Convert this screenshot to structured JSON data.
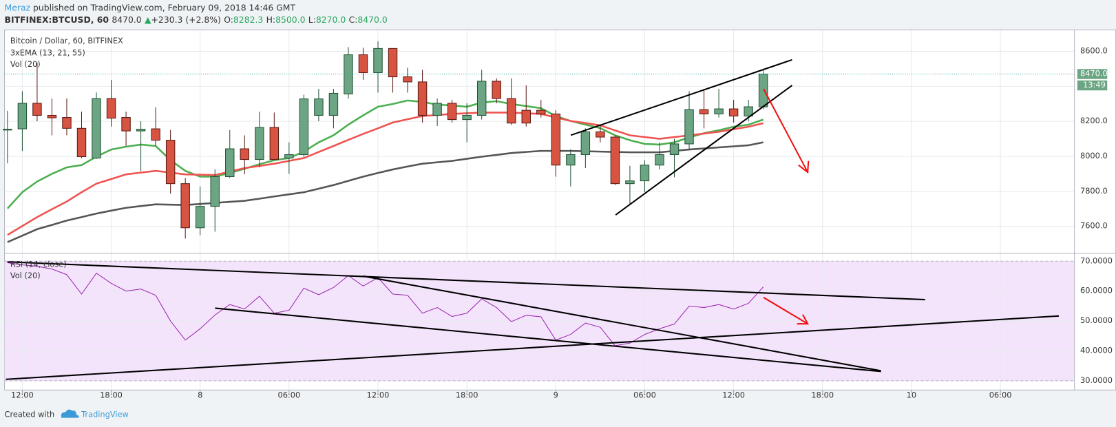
{
  "header": {
    "author": "Meraz",
    "published": " published on TradingView.com, February 09, 2018 14:46 GMT",
    "symbol": "BITFINEX:BTCUSD, 60",
    "last": "8470.0",
    "arrow": "▲",
    "change": "+230.3 (+2.8%)",
    "o_label": "O:",
    "o": "8282.3",
    "h_label": "H:",
    "h": "8500.0",
    "l_label": "L:",
    "l": "8270.0",
    "c_label": "C:",
    "c": "8470.0"
  },
  "footer": {
    "created": "Created with",
    "brand": "TradingView"
  },
  "chart_data": [
    {
      "type": "candlestick",
      "title": "Bitcoin / Dollar, 60, BITFINEX",
      "indicator": "3xEMA (13, 21, 55)",
      "volume_label": "Vol (20)",
      "x": [
        "2018-02-07T11:00",
        "2018-02-07T12:00",
        "2018-02-07T13:00",
        "2018-02-07T14:00",
        "2018-02-07T15:00",
        "2018-02-07T16:00",
        "2018-02-07T17:00",
        "2018-02-07T18:00",
        "2018-02-07T19:00",
        "2018-02-07T20:00",
        "2018-02-07T21:00",
        "2018-02-07T22:00",
        "2018-02-07T23:00",
        "2018-02-08T00:00",
        "2018-02-08T01:00",
        "2018-02-08T02:00",
        "2018-02-08T03:00",
        "2018-02-08T04:00",
        "2018-02-08T05:00",
        "2018-02-08T06:00",
        "2018-02-08T07:00",
        "2018-02-08T08:00",
        "2018-02-08T09:00",
        "2018-02-08T10:00",
        "2018-02-08T11:00",
        "2018-02-08T12:00",
        "2018-02-08T13:00",
        "2018-02-08T14:00",
        "2018-02-08T15:00",
        "2018-02-08T16:00",
        "2018-02-08T17:00",
        "2018-02-08T18:00",
        "2018-02-08T19:00",
        "2018-02-08T20:00",
        "2018-02-08T21:00",
        "2018-02-08T22:00",
        "2018-02-08T23:00",
        "2018-02-09T00:00",
        "2018-02-09T01:00",
        "2018-02-09T02:00",
        "2018-02-09T03:00",
        "2018-02-09T04:00",
        "2018-02-09T05:00",
        "2018-02-09T06:00",
        "2018-02-09T07:00",
        "2018-02-09T08:00",
        "2018-02-09T09:00",
        "2018-02-09T10:00",
        "2018-02-09T11:00",
        "2018-02-09T12:00",
        "2018-02-09T13:00",
        "2018-02-09T14:00"
      ],
      "open": [
        8150,
        8157,
        8303,
        8234,
        8222,
        8160,
        7990,
        8330,
        8222,
        8145,
        8157,
        8092,
        7844,
        7592,
        7714,
        7884,
        8043,
        7982,
        8165,
        7990,
        8010,
        8234,
        8234,
        8356,
        8580,
        8478,
        8616,
        8454,
        8425,
        8234,
        8303,
        8210,
        8234,
        8429,
        8330,
        8263,
        8263,
        8242,
        7950,
        8010,
        8140,
        8110,
        7844,
        7860,
        7950,
        8010,
        8071,
        8267,
        8242,
        8271,
        8230,
        8282.3
      ],
      "high": [
        8260,
        8372,
        8535,
        8330,
        8330,
        8255,
        8365,
        8437,
        8255,
        8200,
        8280,
        8150,
        7876,
        7828,
        7925,
        8150,
        8120,
        8255,
        8250,
        8080,
        8352,
        8385,
        8385,
        8624,
        8620,
        8657,
        8616,
        8506,
        8494,
        8330,
        8323,
        8303,
        8494,
        8445,
        8445,
        8405,
        8323,
        8263,
        8040,
        8160,
        8180,
        8120,
        7946,
        7978,
        8080,
        8100,
        8372,
        8385,
        8385,
        8323,
        8323,
        8500
      ],
      "low": [
        7960,
        8031,
        8200,
        8120,
        8120,
        7990,
        7985,
        8170,
        8060,
        7915,
        8060,
        7787,
        7530,
        7550,
        7570,
        7876,
        7897,
        7937,
        7978,
        7900,
        7998,
        8200,
        8160,
        8330,
        8437,
        8364,
        8364,
        8364,
        8193,
        8173,
        8193,
        8080,
        8210,
        8303,
        8180,
        8170,
        8222,
        7884,
        7828,
        7933,
        8080,
        7836,
        7722,
        7795,
        7925,
        7880,
        8040,
        8160,
        8222,
        8193,
        8200,
        8270
      ],
      "close": [
        8155,
        8303,
        8234,
        8220,
        8160,
        7998,
        8330,
        8218,
        8145,
        8155,
        8092,
        7844,
        7592,
        7714,
        7884,
        8043,
        7982,
        8165,
        7982,
        8010,
        8328,
        8328,
        8360,
        8580,
        8478,
        8616,
        8454,
        8425,
        8234,
        8303,
        8210,
        8234,
        8429,
        8330,
        8190,
        8190,
        8242,
        7950,
        8010,
        8140,
        8110,
        7844,
        7860,
        7950,
        8010,
        8071,
        8267,
        8242,
        8271,
        8230,
        8283,
        8470
      ],
      "up_color": "#6ba583",
      "down_color": "#d75442",
      "series": [
        {
          "color": "#4caf50",
          "values": [
            7702,
            7795,
            7856,
            7900,
            7937,
            7950,
            7998,
            8039,
            8055,
            8067,
            8059,
            7978,
            7917,
            7884,
            7884,
            7905,
            7929,
            7955,
            7978,
            7990,
            8027,
            8080,
            8120,
            8181,
            8234,
            8283,
            8299,
            8319,
            8311,
            8295,
            8291,
            8283,
            8307,
            8315,
            8299,
            8287,
            8275,
            8230,
            8202,
            8181,
            8161,
            8120,
            8092,
            8071,
            8067,
            8080,
            8108,
            8132,
            8149,
            8169,
            8181,
            8210
          ]
        },
        {
          "color": "#ef5350",
          "values": [
            7551,
            7602,
            7653,
            7698,
            7742,
            7795,
            7844,
            7870,
            7897,
            7907,
            7917,
            7907,
            7897,
            7895,
            7893,
            7913,
            7933,
            7945,
            7958,
            7974,
            7990,
            8025,
            8059,
            8094,
            8128,
            8160,
            8193,
            8212,
            8230,
            8236,
            8242,
            8246,
            8250,
            8250,
            8250,
            8246,
            8242,
            8222,
            8202,
            8190,
            8177,
            8148,
            8120,
            8110,
            8100,
            8110,
            8120,
            8130,
            8140,
            8155,
            8169,
            8189
          ]
        },
        {
          "color": "#555555",
          "values": [
            7510,
            7547,
            7584,
            7608,
            7633,
            7653,
            7673,
            7690,
            7706,
            7716,
            7726,
            7724,
            7722,
            7728,
            7734,
            7740,
            7746,
            7758,
            7771,
            7783,
            7795,
            7815,
            7836,
            7860,
            7884,
            7905,
            7925,
            7942,
            7958,
            7966,
            7974,
            7986,
            7998,
            8008,
            8019,
            8025,
            8031,
            8031,
            8031,
            8029,
            8027,
            8025,
            8023,
            8023,
            8023,
            8031,
            8039,
            8045,
            8051,
            8057,
            8063,
            8080
          ]
        }
      ],
      "last_label": "8470.0",
      "countdown": "13:49",
      "xlim": [
        "2018-02-07T10:48",
        "2018-02-10T11:00"
      ],
      "ylim": [
        7450,
        8718
      ],
      "yticks": [
        {
          "value": 7600,
          "label": "7600.0"
        },
        {
          "value": 7800,
          "label": "7800.0"
        },
        {
          "value": 8000,
          "label": "8000.0"
        },
        {
          "value": 8200,
          "label": "8200.0"
        },
        {
          "value": 8400,
          "label": "8400.0"
        },
        {
          "value": 8600,
          "label": "8600.0"
        }
      ],
      "grid": true
    },
    {
      "type": "line",
      "title": "RSI (14, close)",
      "volume_label": "Vol (20)",
      "color": "#9c27b0",
      "x": [
        "2018-02-07T11:00",
        "2018-02-07T12:00",
        "2018-02-07T13:00",
        "2018-02-07T14:00",
        "2018-02-07T15:00",
        "2018-02-07T16:00",
        "2018-02-07T17:00",
        "2018-02-07T18:00",
        "2018-02-07T19:00",
        "2018-02-07T20:00",
        "2018-02-07T21:00",
        "2018-02-07T22:00",
        "2018-02-07T23:00",
        "2018-02-08T00:00",
        "2018-02-08T01:00",
        "2018-02-08T02:00",
        "2018-02-08T03:00",
        "2018-02-08T04:00",
        "2018-02-08T05:00",
        "2018-02-08T06:00",
        "2018-02-08T07:00",
        "2018-02-08T08:00",
        "2018-02-08T09:00",
        "2018-02-08T10:00",
        "2018-02-08T11:00",
        "2018-02-08T12:00",
        "2018-02-08T13:00",
        "2018-02-08T14:00",
        "2018-02-08T15:00",
        "2018-02-08T16:00",
        "2018-02-08T17:00",
        "2018-02-08T18:00",
        "2018-02-08T19:00",
        "2018-02-08T20:00",
        "2018-02-08T21:00",
        "2018-02-08T22:00",
        "2018-02-08T23:00",
        "2018-02-09T00:00",
        "2018-02-09T01:00",
        "2018-02-09T02:00",
        "2018-02-09T03:00",
        "2018-02-09T04:00",
        "2018-02-09T05:00",
        "2018-02-09T06:00",
        "2018-02-09T07:00",
        "2018-02-09T08:00",
        "2018-02-09T09:00",
        "2018-02-09T10:00",
        "2018-02-09T11:00",
        "2018-02-09T12:00",
        "2018-02-09T13:00",
        "2018-02-09T14:00"
      ],
      "values": [
        69.5,
        68.8,
        68.3,
        67.4,
        65.5,
        59,
        66,
        62.6,
        60,
        60.7,
        58.6,
        50,
        43.6,
        47.4,
        52,
        55.5,
        54,
        58.3,
        52.6,
        53.6,
        61,
        58.8,
        61.2,
        65.2,
        61.7,
        64.5,
        59,
        58.6,
        52.6,
        54.5,
        51.5,
        52.6,
        57.4,
        54.5,
        49.8,
        51.9,
        51.4,
        43.6,
        45.5,
        49.3,
        47.9,
        41.7,
        42.6,
        45.5,
        47.4,
        49,
        55,
        54.5,
        55.5,
        54,
        55.9,
        61.4
      ],
      "band": [
        30,
        70
      ],
      "xlim": [
        "2018-02-07T10:48",
        "2018-02-10T11:00"
      ],
      "ylim": [
        26.9,
        72.4
      ],
      "yticks": [
        {
          "value": 30,
          "label": "30.0000"
        },
        {
          "value": 40,
          "label": "40.0000"
        },
        {
          "value": 50,
          "label": "50.0000"
        },
        {
          "value": 60,
          "label": "60.0000"
        },
        {
          "value": 70,
          "label": "70.0000"
        }
      ],
      "xticks": [
        {
          "value": "2018-02-07T12:00",
          "label": "12:00"
        },
        {
          "value": "2018-02-07T18:00",
          "label": "18:00"
        },
        {
          "value": "2018-02-08T00:00",
          "label": "8"
        },
        {
          "value": "2018-02-08T06:00",
          "label": "06:00"
        },
        {
          "value": "2018-02-08T12:00",
          "label": "12:00"
        },
        {
          "value": "2018-02-08T18:00",
          "label": "18:00"
        },
        {
          "value": "2018-02-09T00:00",
          "label": "9"
        },
        {
          "value": "2018-02-09T06:00",
          "label": "06:00"
        },
        {
          "value": "2018-02-09T12:00",
          "label": "12:00"
        },
        {
          "value": "2018-02-09T18:00",
          "label": "18:00"
        },
        {
          "value": "2018-02-10T00:00",
          "label": "10"
        },
        {
          "value": "2018-02-10T06:00",
          "label": "06:00"
        }
      ],
      "grid": true
    }
  ]
}
